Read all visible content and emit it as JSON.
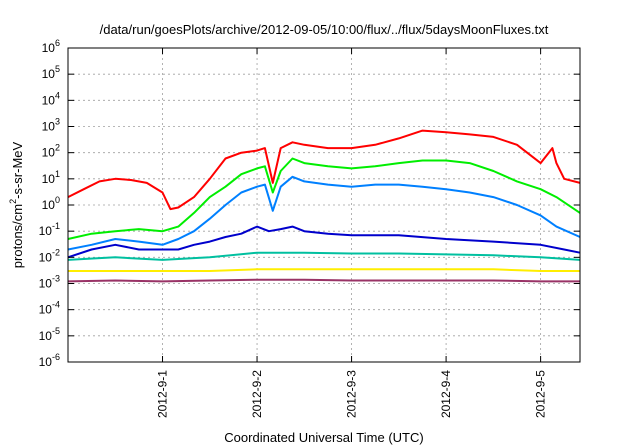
{
  "chart_data": {
    "type": "line",
    "title": "/data/run/goesPlots/archive/2012-09-05/10:00/flux/../flux/5daysMoonFluxes.txt",
    "xlabel": "Coordinated Universal Time (UTC)",
    "ylabel_parts": [
      "protons/cm",
      "2",
      "-s-sr-MeV"
    ],
    "yscale": "log",
    "ylim": [
      1e-06,
      1000000.0
    ],
    "xlim": [
      "2012-08-31T00:00",
      "2012-09-05T10:00"
    ],
    "y_ticks": [
      {
        "base": "10",
        "exp": "-6",
        "value": 1e-06
      },
      {
        "base": "10",
        "exp": "-5",
        "value": 1e-05
      },
      {
        "base": "10",
        "exp": "-4",
        "value": 0.0001
      },
      {
        "base": "10",
        "exp": "-3",
        "value": 0.001
      },
      {
        "base": "10",
        "exp": "-2",
        "value": 0.01
      },
      {
        "base": "10",
        "exp": "-1",
        "value": 0.1
      },
      {
        "base": "10",
        "exp": "0",
        "value": 1
      },
      {
        "base": "10",
        "exp": "1",
        "value": 10
      },
      {
        "base": "10",
        "exp": "2",
        "value": 100
      },
      {
        "base": "10",
        "exp": "3",
        "value": 1000
      },
      {
        "base": "10",
        "exp": "4",
        "value": 10000
      },
      {
        "base": "10",
        "exp": "5",
        "value": 100000
      },
      {
        "base": "10",
        "exp": "6",
        "value": 1000000
      }
    ],
    "x_ticks": [
      "2012-9-1",
      "2012-9-2",
      "2012-9-3",
      "2012-9-4",
      "2012-9-5"
    ],
    "grid": true,
    "legend": "none",
    "series": [
      {
        "color": "#ff0000",
        "x": [
          "2012-08-31T00:00",
          "2012-08-31T04:00",
          "2012-08-31T08:00",
          "2012-08-31T12:00",
          "2012-08-31T16:00",
          "2012-08-31T20:00",
          "2012-09-01T00:00",
          "2012-09-01T02:00",
          "2012-09-01T04:00",
          "2012-09-01T08:00",
          "2012-09-01T12:00",
          "2012-09-01T16:00",
          "2012-09-01T20:00",
          "2012-09-02T00:00",
          "2012-09-02T02:00",
          "2012-09-02T04:00",
          "2012-09-02T06:00",
          "2012-09-02T09:00",
          "2012-09-02T12:00",
          "2012-09-02T18:00",
          "2012-09-03T00:00",
          "2012-09-03T06:00",
          "2012-09-03T12:00",
          "2012-09-03T18:00",
          "2012-09-04T00:00",
          "2012-09-04T06:00",
          "2012-09-04T12:00",
          "2012-09-04T18:00",
          "2012-09-05T00:00",
          "2012-09-05T03:00",
          "2012-09-05T04:00",
          "2012-09-05T06:00",
          "2012-09-05T10:00"
        ],
        "y": [
          2,
          4,
          8,
          10,
          9,
          7,
          3,
          0.7,
          0.8,
          2,
          10,
          60,
          100,
          120,
          150,
          7,
          150,
          250,
          200,
          150,
          150,
          200,
          350,
          700,
          600,
          500,
          400,
          200,
          40,
          150,
          40,
          10,
          7
        ]
      },
      {
        "color": "#00ee00",
        "x": [
          "2012-08-31T00:00",
          "2012-08-31T06:00",
          "2012-08-31T12:00",
          "2012-08-31T18:00",
          "2012-09-01T00:00",
          "2012-09-01T04:00",
          "2012-09-01T08:00",
          "2012-09-01T12:00",
          "2012-09-01T16:00",
          "2012-09-01T20:00",
          "2012-09-02T00:00",
          "2012-09-02T02:00",
          "2012-09-02T04:00",
          "2012-09-02T06:00",
          "2012-09-02T09:00",
          "2012-09-02T12:00",
          "2012-09-02T18:00",
          "2012-09-03T00:00",
          "2012-09-03T06:00",
          "2012-09-03T12:00",
          "2012-09-03T18:00",
          "2012-09-04T00:00",
          "2012-09-04T06:00",
          "2012-09-04T12:00",
          "2012-09-04T18:00",
          "2012-09-05T00:00",
          "2012-09-05T04:00",
          "2012-09-05T10:00"
        ],
        "y": [
          0.05,
          0.08,
          0.1,
          0.12,
          0.1,
          0.15,
          0.5,
          2,
          5,
          15,
          25,
          30,
          3,
          20,
          60,
          40,
          30,
          25,
          30,
          40,
          50,
          50,
          40,
          20,
          8,
          4,
          2,
          0.5
        ]
      },
      {
        "color": "#0080ff",
        "x": [
          "2012-08-31T00:00",
          "2012-08-31T06:00",
          "2012-08-31T12:00",
          "2012-08-31T18:00",
          "2012-09-01T00:00",
          "2012-09-01T04:00",
          "2012-09-01T08:00",
          "2012-09-01T12:00",
          "2012-09-01T16:00",
          "2012-09-01T20:00",
          "2012-09-02T00:00",
          "2012-09-02T02:00",
          "2012-09-02T04:00",
          "2012-09-02T06:00",
          "2012-09-02T09:00",
          "2012-09-02T12:00",
          "2012-09-02T18:00",
          "2012-09-03T00:00",
          "2012-09-03T06:00",
          "2012-09-03T12:00",
          "2012-09-03T18:00",
          "2012-09-04T00:00",
          "2012-09-04T06:00",
          "2012-09-04T12:00",
          "2012-09-04T18:00",
          "2012-09-05T00:00",
          "2012-09-05T04:00",
          "2012-09-05T10:00"
        ],
        "y": [
          0.02,
          0.03,
          0.05,
          0.04,
          0.03,
          0.05,
          0.1,
          0.3,
          1,
          3,
          5,
          6,
          0.6,
          5,
          12,
          8,
          6,
          5,
          6,
          6,
          5,
          4,
          3,
          2,
          1,
          0.4,
          0.15,
          0.06
        ]
      },
      {
        "color": "#0000cc",
        "x": [
          "2012-08-31T00:00",
          "2012-08-31T06:00",
          "2012-08-31T12:00",
          "2012-08-31T18:00",
          "2012-09-01T00:00",
          "2012-09-01T04:00",
          "2012-09-01T08:00",
          "2012-09-01T12:00",
          "2012-09-01T16:00",
          "2012-09-01T20:00",
          "2012-09-02T00:00",
          "2012-09-02T03:00",
          "2012-09-02T06:00",
          "2012-09-02T09:00",
          "2012-09-02T12:00",
          "2012-09-02T18:00",
          "2012-09-03T00:00",
          "2012-09-03T12:00",
          "2012-09-04T00:00",
          "2012-09-04T12:00",
          "2012-09-05T00:00",
          "2012-09-05T06:00",
          "2012-09-05T10:00"
        ],
        "y": [
          0.01,
          0.02,
          0.03,
          0.02,
          0.02,
          0.02,
          0.03,
          0.04,
          0.06,
          0.08,
          0.15,
          0.1,
          0.12,
          0.15,
          0.1,
          0.08,
          0.07,
          0.07,
          0.05,
          0.04,
          0.03,
          0.02,
          0.015
        ]
      },
      {
        "color": "#00c0a0",
        "x": [
          "2012-08-31T00:00",
          "2012-08-31T12:00",
          "2012-09-01T00:00",
          "2012-09-01T12:00",
          "2012-09-02T00:00",
          "2012-09-02T12:00",
          "2012-09-03T00:00",
          "2012-09-03T12:00",
          "2012-09-04T00:00",
          "2012-09-04T12:00",
          "2012-09-05T00:00",
          "2012-09-05T10:00"
        ],
        "y": [
          0.008,
          0.01,
          0.008,
          0.01,
          0.015,
          0.015,
          0.014,
          0.014,
          0.013,
          0.012,
          0.01,
          0.008
        ]
      },
      {
        "color": "#ffee00",
        "x": [
          "2012-08-31T00:00",
          "2012-08-31T12:00",
          "2012-09-01T00:00",
          "2012-09-01T12:00",
          "2012-09-02T00:00",
          "2012-09-02T12:00",
          "2012-09-03T00:00",
          "2012-09-03T12:00",
          "2012-09-04T00:00",
          "2012-09-04T12:00",
          "2012-09-05T00:00",
          "2012-09-05T10:00"
        ],
        "y": [
          0.003,
          0.003,
          0.003,
          0.003,
          0.0035,
          0.0035,
          0.0035,
          0.0035,
          0.0035,
          0.0035,
          0.003,
          0.003
        ]
      },
      {
        "color": "#993366",
        "x": [
          "2012-08-31T00:00",
          "2012-08-31T12:00",
          "2012-09-01T00:00",
          "2012-09-01T12:00",
          "2012-09-02T00:00",
          "2012-09-02T12:00",
          "2012-09-03T00:00",
          "2012-09-03T12:00",
          "2012-09-04T00:00",
          "2012-09-04T12:00",
          "2012-09-05T00:00",
          "2012-09-05T10:00"
        ],
        "y": [
          0.0012,
          0.0013,
          0.0012,
          0.0013,
          0.0014,
          0.0014,
          0.0013,
          0.0013,
          0.0013,
          0.0013,
          0.0012,
          0.0012
        ]
      }
    ]
  }
}
